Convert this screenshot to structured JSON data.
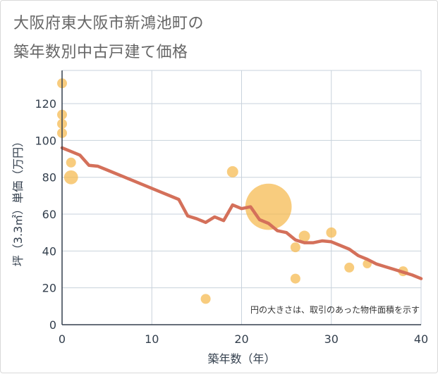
{
  "title": {
    "line1": "大阪府東大阪市新鴻池町の",
    "line2": "築年数別中古戸建て価格"
  },
  "colors": {
    "bubble": "#f5b84c",
    "line": "#d4705a",
    "grid": "#c8d2dc",
    "axis_text": "#333f4d"
  },
  "chart_data": {
    "type": "scatter",
    "xlabel": "築年数（年）",
    "ylabel": "坪（3.3㎡）単価（万円）",
    "xlim": [
      0,
      40
    ],
    "ylim": [
      0,
      138
    ],
    "xticks": [
      0,
      10,
      20,
      30,
      40
    ],
    "yticks": [
      0,
      20,
      40,
      60,
      80,
      100,
      120
    ],
    "note": "円の大きさは、取引のあった物件面積を示す",
    "bubbles": [
      {
        "x": 0,
        "y": 131,
        "size": 1
      },
      {
        "x": 0,
        "y": 114,
        "size": 1
      },
      {
        "x": 0,
        "y": 109,
        "size": 1
      },
      {
        "x": 0,
        "y": 104,
        "size": 1
      },
      {
        "x": 1,
        "y": 88,
        "size": 1
      },
      {
        "x": 1,
        "y": 80,
        "size": 2
      },
      {
        "x": 16,
        "y": 14,
        "size": 1
      },
      {
        "x": 19,
        "y": 83,
        "size": 1.3
      },
      {
        "x": 23,
        "y": 64,
        "size": 22
      },
      {
        "x": 26,
        "y": 42,
        "size": 1
      },
      {
        "x": 26,
        "y": 25,
        "size": 1
      },
      {
        "x": 27,
        "y": 48,
        "size": 1.3
      },
      {
        "x": 30,
        "y": 50,
        "size": 1.1
      },
      {
        "x": 32,
        "y": 31,
        "size": 1
      },
      {
        "x": 34,
        "y": 33,
        "size": 0.8
      },
      {
        "x": 38,
        "y": 29,
        "size": 1
      }
    ],
    "trend_line": {
      "x": [
        0,
        1,
        2,
        3,
        4,
        5,
        6,
        7,
        8,
        9,
        10,
        11,
        12,
        13,
        14,
        15,
        16,
        17,
        18,
        19,
        20,
        21,
        22,
        23,
        24,
        25,
        26,
        27,
        28,
        29,
        30,
        31,
        32,
        33,
        34,
        35,
        36,
        37,
        38,
        39,
        40
      ],
      "y": [
        96,
        94,
        92,
        86.5,
        86,
        84,
        82,
        80,
        78,
        76,
        74,
        72,
        70,
        68,
        59,
        57.5,
        55.5,
        58.5,
        56.5,
        65,
        63,
        64,
        57,
        55,
        51,
        50,
        46,
        44.5,
        44.5,
        45.5,
        45,
        43,
        41,
        37.5,
        35.5,
        33,
        31.5,
        30,
        28.5,
        27,
        25
      ]
    }
  }
}
